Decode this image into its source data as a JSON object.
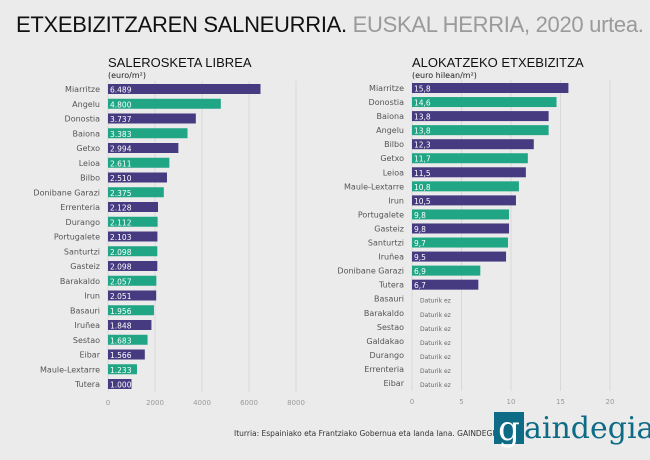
{
  "header": {
    "title_main": "ETXEBIZITZAREN SALNEURRIA.",
    "title_sub": "EUSKAL HERRIA, 2020 urtea."
  },
  "colors": {
    "purple": "#463a80",
    "green": "#20a585",
    "background": "#ebebeb"
  },
  "chart_data": [
    {
      "type": "bar",
      "orientation": "horizontal",
      "title": "SALEROSKETA LIBREA",
      "unit": "(euro/m²)",
      "xlim": [
        0,
        8000
      ],
      "xticks": [
        "0",
        "2000",
        "4000",
        "6000",
        "8000"
      ],
      "grid": true,
      "categories": [
        "Miarritze",
        "Angelu",
        "Donostia",
        "Baiona",
        "Getxo",
        "Leioa",
        "Bilbo",
        "Donibane Garazi",
        "Errenteria",
        "Durango",
        "Portugalete",
        "Santurtzi",
        "Gasteiz",
        "Barakaldo",
        "Irun",
        "Basauri",
        "Iruñea",
        "Sestao",
        "Eibar",
        "Maule-Lextarre",
        "Tutera"
      ],
      "values": [
        6489,
        4800,
        3737,
        3383,
        2994,
        2611,
        2510,
        2375,
        2128,
        2112,
        2103,
        2098,
        2098,
        2057,
        2051,
        1956,
        1848,
        1683,
        1566,
        1233,
        1000
      ],
      "labels": [
        "6.489",
        "4.800",
        "3.737",
        "3.383",
        "2.994",
        "2.611",
        "2.510",
        "2.375",
        "2.128",
        "2.112",
        "2.103",
        "2.098",
        "2.098",
        "2.057",
        "2.051",
        "1.956",
        "1.848",
        "1.683",
        "1.566",
        "1.233",
        "1.000"
      ]
    },
    {
      "type": "bar",
      "orientation": "horizontal",
      "title": "ALOKATZEKO ETXEBIZITZA",
      "unit": "(euro hilean/m²)",
      "xlim": [
        0,
        20
      ],
      "xticks": [
        "0",
        "5",
        "10",
        "15",
        "20"
      ],
      "grid": true,
      "no_data_label": "Daturik ez",
      "categories": [
        "Miarritze",
        "Donostia",
        "Baiona",
        "Angelu",
        "Bilbo",
        "Getxo",
        "Leioa",
        "Maule-Lextarre",
        "Irun",
        "Portugalete",
        "Gasteiz",
        "Santurtzi",
        "Iruñea",
        "Donibane Garazi",
        "Tutera",
        "Basauri",
        "Barakaldo",
        "Sestao",
        "Galdakao",
        "Durango",
        "Errenteria",
        "Eibar"
      ],
      "values": [
        15.8,
        14.6,
        13.8,
        13.8,
        12.3,
        11.7,
        11.5,
        10.8,
        10.5,
        9.8,
        9.8,
        9.7,
        9.5,
        6.9,
        6.7,
        null,
        null,
        null,
        null,
        null,
        null,
        null
      ],
      "labels": [
        "15,8",
        "14,6",
        "13,8",
        "13,8",
        "12,3",
        "11,7",
        "11,5",
        "10,8",
        "10,5",
        "9,8",
        "9,8",
        "9,7",
        "9,5",
        "6,9",
        "6,7"
      ]
    }
  ],
  "footer": {
    "source": "Iturria: Espainiako eta Frantziako Gobernua eta landa lana. GAINDEGIA.",
    "logo_text": "gaindegia"
  }
}
